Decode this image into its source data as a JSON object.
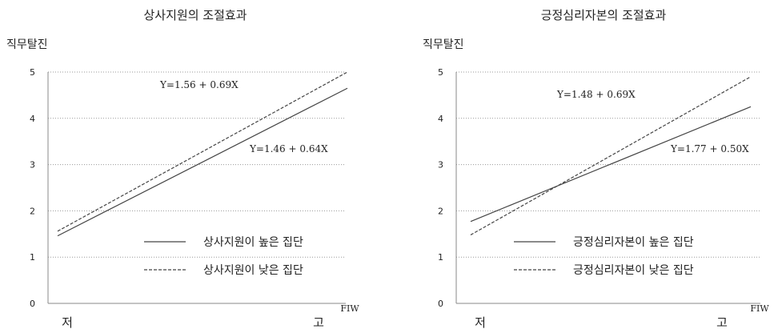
{
  "chart_data": [
    {
      "type": "line",
      "title": "상사지원의 조절효과",
      "ylabel": "직무탈진",
      "xlabel": "FIW",
      "categories": [
        "저",
        "고"
      ],
      "ylim": [
        0,
        5
      ],
      "yticks": [
        "0",
        "1",
        "2",
        "3",
        "4",
        "5"
      ],
      "grid": true,
      "legend_position": "lower-right",
      "series": [
        {
          "name": "상사지원이 높은 집단",
          "values": [
            1.46,
            4.65
          ],
          "style": "solid",
          "color": "#444444",
          "equation": "Y=1.46 + 0.64X"
        },
        {
          "name": "상사지원이 낮은 집단",
          "values": [
            1.56,
            5.0
          ],
          "style": "dashed",
          "color": "#444444",
          "equation": "Y=1.56 + 0.69X"
        }
      ]
    },
    {
      "type": "line",
      "title": "긍정심리자본의 조절효과",
      "ylabel": "직무탈진",
      "xlabel": "FIW",
      "categories": [
        "저",
        "고"
      ],
      "ylim": [
        0,
        5
      ],
      "yticks": [
        "0",
        "1",
        "2",
        "3",
        "4",
        "5"
      ],
      "grid": true,
      "legend_position": "lower-right",
      "series": [
        {
          "name": "긍정심리자본이 높은 집단",
          "values": [
            1.77,
            4.25
          ],
          "style": "solid",
          "color": "#444444",
          "equation": "Y=1.77 + 0.50X"
        },
        {
          "name": "긍정심리자본이 낮은 집단",
          "values": [
            1.48,
            4.9
          ],
          "style": "dashed",
          "color": "#444444",
          "equation": "Y=1.48 + 0.69X"
        }
      ]
    }
  ]
}
